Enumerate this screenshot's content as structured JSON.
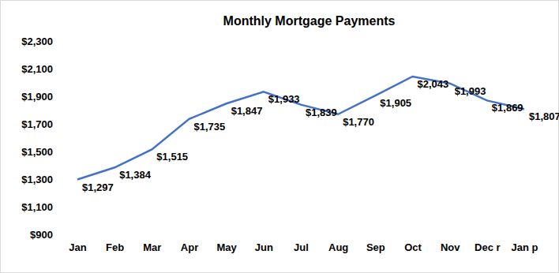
{
  "chart_data": {
    "type": "line",
    "title": "Monthly Mortgage Payments",
    "categories": [
      "Jan",
      "Feb",
      "Mar",
      "Apr",
      "May",
      "Jun",
      "Jul",
      "Aug",
      "Sep",
      "Oct",
      "Nov",
      "Dec r",
      "Jan p"
    ],
    "values": [
      1297,
      1384,
      1515,
      1735,
      1847,
      1933,
      1839,
      1770,
      1905,
      2043,
      1993,
      1869,
      1807
    ],
    "value_labels": [
      "$1,297",
      "$1,384",
      "$1,515",
      "$1,735",
      "$1,847",
      "$1,933",
      "$1,839",
      "$1,770",
      "$1,905",
      "$2,043",
      "$1,993",
      "$1,869",
      "$1,807"
    ],
    "color": "#4472c4",
    "data_labels": true,
    "grid": false,
    "ylim": [
      900,
      2300
    ],
    "yticks": [
      {
        "value": 900,
        "label": "$900"
      },
      {
        "value": 1100,
        "label": "$1,100"
      },
      {
        "value": 1300,
        "label": "$1,300"
      },
      {
        "value": 1500,
        "label": "$1,500"
      },
      {
        "value": 1700,
        "label": "$1,700"
      },
      {
        "value": 1900,
        "label": "$1,900"
      },
      {
        "value": 2100,
        "label": "$2,100"
      },
      {
        "value": 2300,
        "label": "$2,300"
      }
    ]
  }
}
